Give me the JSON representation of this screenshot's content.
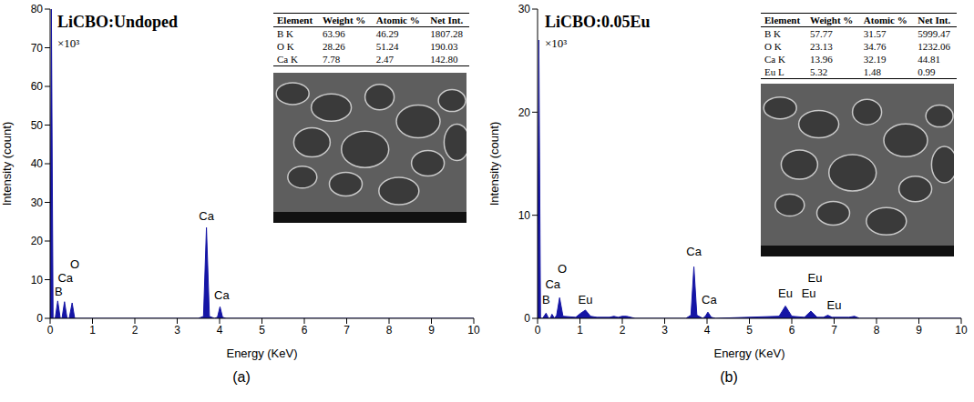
{
  "chart_data": [
    {
      "type": "area",
      "panel_label": "(a)",
      "title": "LiCBO:Undoped",
      "y_multiplier": "×10³",
      "x_label": "Energy (KeV)",
      "y_label": "Intensity (count)",
      "xlim": [
        0,
        10
      ],
      "xticks": [
        0,
        1,
        2,
        3,
        4,
        5,
        6,
        7,
        8,
        9,
        10
      ],
      "ylim": [
        0,
        80
      ],
      "yticks": [
        0,
        10,
        20,
        30,
        40,
        50,
        60,
        70,
        80
      ],
      "grid": false,
      "color": "#1515a5",
      "x": [
        0,
        0.03,
        0.07,
        0.12,
        0.18,
        0.24,
        0.28,
        0.34,
        0.4,
        0.45,
        0.52,
        0.58,
        0.65,
        3.5,
        3.62,
        3.69,
        3.76,
        3.88,
        3.95,
        4.01,
        4.07,
        4.15,
        10
      ],
      "values": [
        0,
        80,
        0,
        0,
        4.5,
        0,
        0,
        4.3,
        0,
        0,
        4.0,
        0,
        0,
        0,
        0.5,
        23.5,
        0.5,
        0,
        0.3,
        3.0,
        0.3,
        0,
        0
      ],
      "annotations": [
        {
          "text": "B",
          "x": 0.2,
          "y": 7
        },
        {
          "text": "Ca",
          "x": 0.36,
          "y": 10.5
        },
        {
          "text": "O",
          "x": 0.58,
          "y": 14
        },
        {
          "text": "Ca",
          "x": 3.69,
          "y": 26.5
        },
        {
          "text": "Ca",
          "x": 4.05,
          "y": 6
        }
      ],
      "inset_table": {
        "columns": [
          "Element",
          "Weight %",
          "Atomic %",
          "Net Int."
        ],
        "rows": [
          [
            "B K",
            "63.96",
            "46.29",
            "1807.28"
          ],
          [
            "O K",
            "28.26",
            "51.24",
            "190.03"
          ],
          [
            "Ca K",
            "7.78",
            "2.47",
            "142.80"
          ]
        ]
      }
    },
    {
      "type": "area",
      "panel_label": "(b)",
      "title": "LiCBO:0.05Eu",
      "y_multiplier": "×10³",
      "x_label": "Energy (KeV)",
      "y_label": "Intensity (count)",
      "xlim": [
        0,
        10
      ],
      "xticks": [
        0,
        1,
        2,
        3,
        4,
        5,
        6,
        7,
        8,
        9,
        10
      ],
      "ylim": [
        0,
        30
      ],
      "yticks": [
        0,
        10,
        20,
        30
      ],
      "grid": false,
      "color": "#1515a5",
      "x": [
        0,
        0.03,
        0.07,
        0.12,
        0.2,
        0.26,
        0.3,
        0.34,
        0.4,
        0.45,
        0.52,
        0.6,
        0.9,
        1.02,
        1.13,
        1.25,
        1.4,
        1.7,
        1.8,
        1.9,
        2.0,
        2.1,
        2.2,
        2.3,
        3.5,
        3.62,
        3.69,
        3.76,
        3.9,
        3.96,
        4.02,
        4.1,
        4.2,
        5.7,
        5.85,
        6.0,
        6.3,
        6.45,
        6.6,
        6.75,
        6.85,
        6.95,
        7.35,
        7.48,
        7.6,
        10
      ],
      "values": [
        0,
        27,
        0,
        0,
        0.5,
        0,
        0,
        0.4,
        0,
        0.3,
        2.0,
        0.2,
        0.1,
        0.5,
        0.8,
        0.2,
        0.1,
        0.1,
        0.2,
        0.1,
        0.2,
        0.2,
        0.1,
        0,
        0,
        0.3,
        5.0,
        0.3,
        0,
        0.2,
        0.6,
        0.1,
        0,
        0.2,
        1.2,
        0.2,
        0.1,
        0.7,
        0.1,
        0.1,
        0.3,
        0.1,
        0.1,
        0.2,
        0,
        0
      ],
      "annotations": [
        {
          "text": "B",
          "x": 0.2,
          "y": 1.8
        },
        {
          "text": "Ca",
          "x": 0.36,
          "y": 3.3
        },
        {
          "text": "O",
          "x": 0.58,
          "y": 4.8
        },
        {
          "text": "Eu",
          "x": 1.13,
          "y": 1.8
        },
        {
          "text": "Ca",
          "x": 3.69,
          "y": 6.5
        },
        {
          "text": "Ca",
          "x": 4.05,
          "y": 1.8
        },
        {
          "text": "Eu",
          "x": 5.85,
          "y": 2.4
        },
        {
          "text": "Eu",
          "x": 6.4,
          "y": 2.4
        },
        {
          "text": "Eu",
          "x": 6.55,
          "y": 3.9
        },
        {
          "text": "Eu",
          "x": 7.0,
          "y": 1.3
        }
      ],
      "inset_table": {
        "columns": [
          "Element",
          "Weight %",
          "Atomic %",
          "Net Int."
        ],
        "rows": [
          [
            "B K",
            "57.77",
            "31.57",
            "5999.47"
          ],
          [
            "O K",
            "23.13",
            "34.76",
            "1232.06"
          ],
          [
            "Ca K",
            "13.96",
            "32.19",
            "44.81"
          ],
          [
            "Eu L",
            "5.32",
            "1.48",
            "0.99"
          ]
        ]
      }
    }
  ]
}
